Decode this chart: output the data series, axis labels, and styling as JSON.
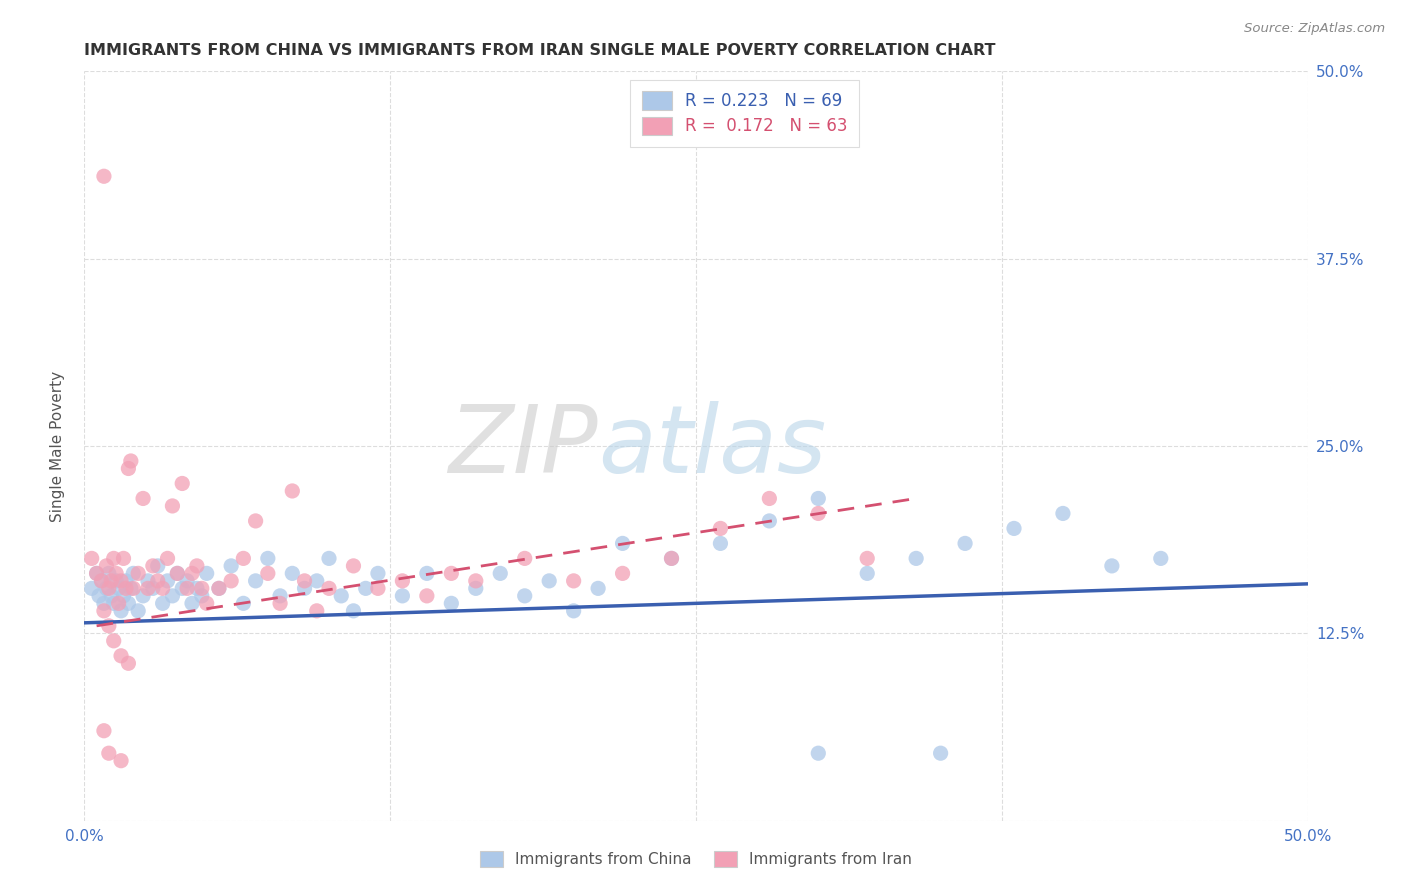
{
  "title": "IMMIGRANTS FROM CHINA VS IMMIGRANTS FROM IRAN SINGLE MALE POVERTY CORRELATION CHART",
  "source": "Source: ZipAtlas.com",
  "ylabel": "Single Male Poverty",
  "xlim": [
    0.0,
    0.5
  ],
  "ylim": [
    0.0,
    0.5
  ],
  "china_R": 0.223,
  "china_N": 69,
  "iran_R": 0.172,
  "iran_N": 63,
  "china_color": "#adc8e8",
  "iran_color": "#f2a0b5",
  "china_line_color": "#3a5fb0",
  "iran_line_color": "#d45070",
  "legend_label_china": "Immigrants from China",
  "legend_label_iran": "Immigrants from Iran",
  "background_color": "#ffffff",
  "grid_color": "#dddddd",
  "china_scatter_x": [
    0.003,
    0.005,
    0.006,
    0.007,
    0.008,
    0.009,
    0.01,
    0.011,
    0.012,
    0.013,
    0.014,
    0.015,
    0.016,
    0.017,
    0.018,
    0.019,
    0.02,
    0.022,
    0.024,
    0.026,
    0.028,
    0.03,
    0.032,
    0.034,
    0.036,
    0.038,
    0.04,
    0.042,
    0.044,
    0.046,
    0.048,
    0.05,
    0.055,
    0.06,
    0.065,
    0.07,
    0.075,
    0.08,
    0.085,
    0.09,
    0.095,
    0.1,
    0.105,
    0.11,
    0.115,
    0.12,
    0.13,
    0.14,
    0.15,
    0.16,
    0.17,
    0.18,
    0.19,
    0.2,
    0.21,
    0.22,
    0.24,
    0.26,
    0.28,
    0.3,
    0.32,
    0.34,
    0.36,
    0.38,
    0.4,
    0.42,
    0.44,
    0.3,
    0.35
  ],
  "china_scatter_y": [
    0.155,
    0.165,
    0.15,
    0.16,
    0.145,
    0.155,
    0.165,
    0.15,
    0.145,
    0.16,
    0.155,
    0.14,
    0.15,
    0.16,
    0.145,
    0.155,
    0.165,
    0.14,
    0.15,
    0.16,
    0.155,
    0.17,
    0.145,
    0.16,
    0.15,
    0.165,
    0.155,
    0.16,
    0.145,
    0.155,
    0.15,
    0.165,
    0.155,
    0.17,
    0.145,
    0.16,
    0.175,
    0.15,
    0.165,
    0.155,
    0.16,
    0.175,
    0.15,
    0.14,
    0.155,
    0.165,
    0.15,
    0.165,
    0.145,
    0.155,
    0.165,
    0.15,
    0.16,
    0.14,
    0.155,
    0.185,
    0.175,
    0.185,
    0.2,
    0.215,
    0.165,
    0.175,
    0.185,
    0.195,
    0.205,
    0.17,
    0.175,
    0.045,
    0.045
  ],
  "iran_scatter_x": [
    0.003,
    0.005,
    0.007,
    0.008,
    0.009,
    0.01,
    0.011,
    0.012,
    0.013,
    0.014,
    0.015,
    0.016,
    0.017,
    0.018,
    0.019,
    0.02,
    0.022,
    0.024,
    0.026,
    0.028,
    0.03,
    0.032,
    0.034,
    0.036,
    0.038,
    0.04,
    0.042,
    0.044,
    0.046,
    0.048,
    0.05,
    0.055,
    0.06,
    0.065,
    0.07,
    0.075,
    0.08,
    0.085,
    0.09,
    0.095,
    0.1,
    0.11,
    0.12,
    0.13,
    0.14,
    0.15,
    0.16,
    0.18,
    0.2,
    0.22,
    0.24,
    0.26,
    0.28,
    0.3,
    0.32,
    0.008,
    0.01,
    0.012,
    0.015,
    0.018,
    0.008,
    0.01,
    0.015
  ],
  "iran_scatter_y": [
    0.175,
    0.165,
    0.16,
    0.43,
    0.17,
    0.155,
    0.16,
    0.175,
    0.165,
    0.145,
    0.16,
    0.175,
    0.155,
    0.235,
    0.24,
    0.155,
    0.165,
    0.215,
    0.155,
    0.17,
    0.16,
    0.155,
    0.175,
    0.21,
    0.165,
    0.225,
    0.155,
    0.165,
    0.17,
    0.155,
    0.145,
    0.155,
    0.16,
    0.175,
    0.2,
    0.165,
    0.145,
    0.22,
    0.16,
    0.14,
    0.155,
    0.17,
    0.155,
    0.16,
    0.15,
    0.165,
    0.16,
    0.175,
    0.16,
    0.165,
    0.175,
    0.195,
    0.215,
    0.205,
    0.175,
    0.14,
    0.13,
    0.12,
    0.11,
    0.105,
    0.06,
    0.045,
    0.04
  ],
  "china_trendline_x0": 0.0,
  "china_trendline_x1": 0.5,
  "china_trendline_y0": 0.132,
  "china_trendline_y1": 0.158,
  "iran_trendline_x0": 0.005,
  "iran_trendline_x1": 0.34,
  "iran_trendline_y0": 0.13,
  "iran_trendline_y1": 0.215
}
